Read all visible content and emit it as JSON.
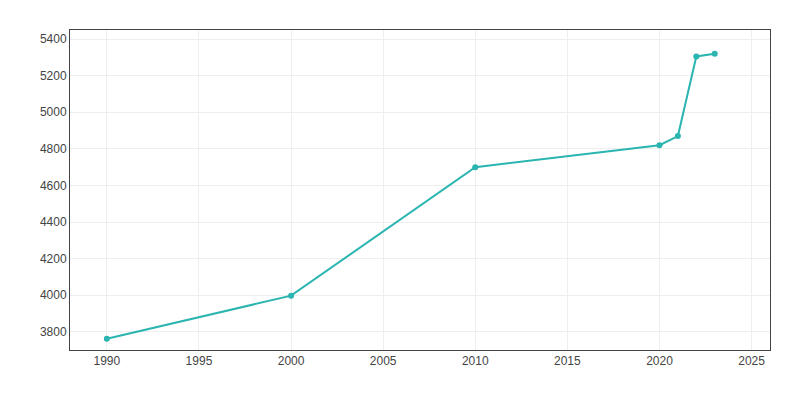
{
  "chart_data": {
    "type": "line",
    "x": [
      1990,
      2000,
      2010,
      2020,
      2021,
      2022,
      2023
    ],
    "values": [
      3762,
      3997,
      4700,
      4820,
      4870,
      5305,
      5320
    ],
    "color": "#2ab5b0",
    "marker": "circle",
    "xlim": [
      1988,
      2026
    ],
    "ylim": [
      3700,
      5450
    ],
    "xticks": [
      1990,
      1995,
      2000,
      2005,
      2010,
      2015,
      2020,
      2025
    ],
    "yticks": [
      3800,
      4000,
      4200,
      4400,
      4600,
      4800,
      5000,
      5200,
      5400
    ],
    "grid": true
  }
}
